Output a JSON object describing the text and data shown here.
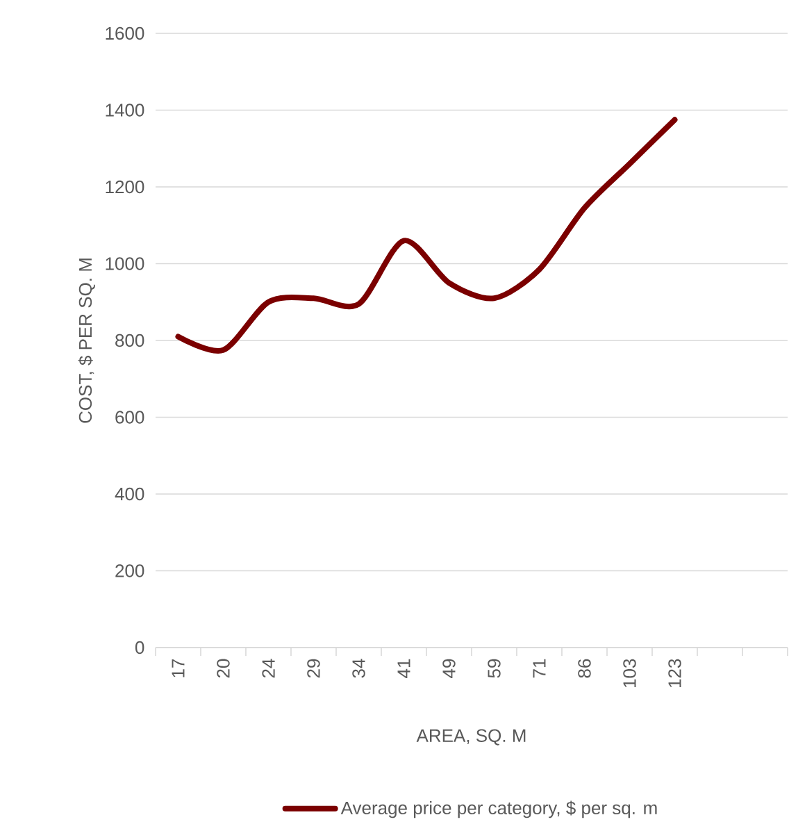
{
  "chart_data": {
    "type": "line",
    "xlabel": "AREA, SQ. M",
    "ylabel": "COST, $ PER SQ. M",
    "categories": [
      "17",
      "20",
      "24",
      "29",
      "34",
      "41",
      "49",
      "59",
      "71",
      "86",
      "103",
      "123",
      null,
      null
    ],
    "series": [
      {
        "name": "Average price per category, $ per sq. m",
        "color": "#7b0000",
        "values": [
          810,
          775,
          900,
          910,
          895,
          1060,
          950,
          910,
          985,
          1145,
          1260,
          1375,
          null,
          null
        ]
      }
    ],
    "ylim": [
      0,
      1600
    ],
    "yticks": [
      0,
      200,
      400,
      600,
      800,
      1000,
      1200,
      1400,
      1600
    ],
    "grid": "y",
    "legend": "bottom",
    "line_style": "solid"
  }
}
